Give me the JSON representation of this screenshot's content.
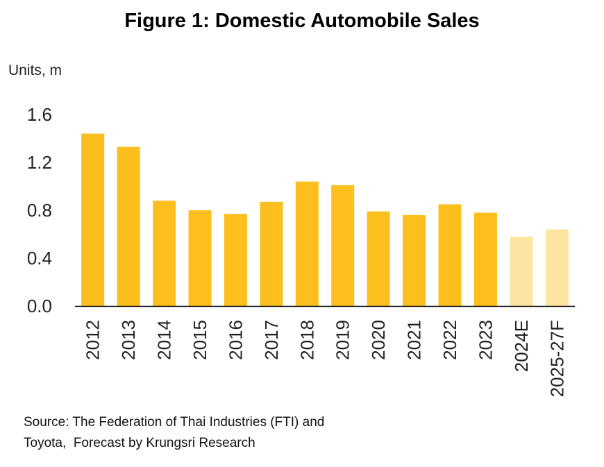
{
  "title": "Figure 1: Domestic Automobile Sales",
  "ylabel": "Units, m",
  "source": {
    "line1": "Source: The Federation of Thai Industries (FTI) and",
    "line2": "Toyota,  Forecast by Krungsri Research"
  },
  "colors": {
    "actual": "#FDBF1E",
    "forecast": "#FDE4A3",
    "axis": "#000000"
  },
  "chart_data": {
    "type": "bar",
    "categories": [
      "2012",
      "2013",
      "2014",
      "2015",
      "2016",
      "2017",
      "2018",
      "2019",
      "2020",
      "2021",
      "2022",
      "2023",
      "2024E",
      "2025-27F"
    ],
    "values": [
      1.44,
      1.33,
      0.88,
      0.8,
      0.77,
      0.87,
      1.04,
      1.01,
      0.79,
      0.76,
      0.85,
      0.78,
      0.58,
      0.64
    ],
    "forecast": [
      false,
      false,
      false,
      false,
      false,
      false,
      false,
      false,
      false,
      false,
      false,
      false,
      true,
      true
    ],
    "yticks": [
      "0.0",
      "0.4",
      "0.8",
      "1.2",
      "1.6"
    ],
    "ylim": [
      0,
      1.6
    ],
    "xlabel": "",
    "ylabel": "Units, m",
    "grid": false,
    "legend": "none"
  }
}
